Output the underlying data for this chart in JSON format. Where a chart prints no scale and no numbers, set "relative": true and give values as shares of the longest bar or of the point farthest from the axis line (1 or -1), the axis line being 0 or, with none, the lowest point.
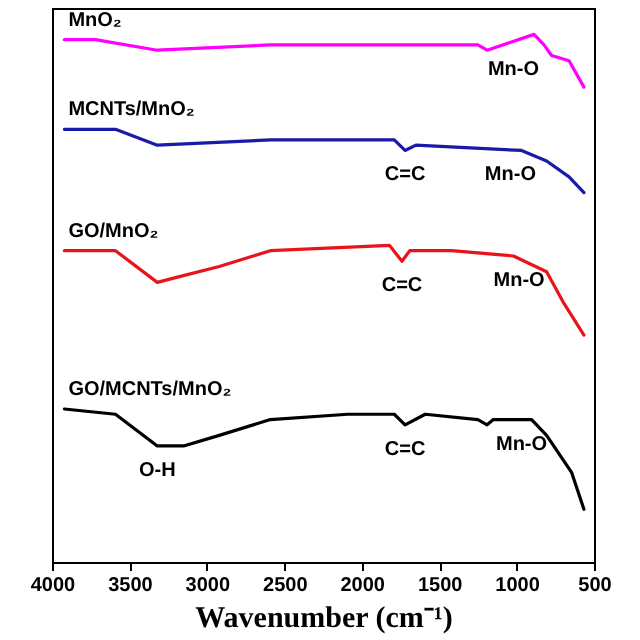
{
  "chart_data": {
    "type": "line",
    "relative": true,
    "xlabel": "Wavenumber (cm⁻¹)",
    "xlim": [
      4000,
      500
    ],
    "xticks": [
      4000,
      3500,
      3000,
      2500,
      2000,
      1500,
      1000,
      500
    ],
    "grid": false,
    "legend": false,
    "marker": "none",
    "line_style": "solid",
    "series": [
      {
        "name": "MnO₂",
        "color": "#ff00ff",
        "x": [
          3920,
          3720,
          3320,
          2590,
          1920,
          1250,
          1190,
          887,
          823,
          774,
          661,
          565
        ],
        "values": [
          0.99,
          0.99,
          0.97,
          0.98,
          0.98,
          0.98,
          0.97,
          1.0,
          0.98,
          0.96,
          0.95,
          0.9
        ]
      },
      {
        "name": "MCNTs/MnO₂",
        "color": "#1a1aa8",
        "x": [
          3920,
          3590,
          3320,
          2590,
          1790,
          1720,
          1650,
          968,
          806,
          661,
          565
        ],
        "values": [
          0.82,
          0.82,
          0.79,
          0.8,
          0.8,
          0.78,
          0.79,
          0.78,
          0.76,
          0.73,
          0.7
        ]
      },
      {
        "name": "GO/MnO₂",
        "color": "#e8141a",
        "x": [
          3920,
          3590,
          3320,
          3190,
          2920,
          2590,
          1820,
          1740,
          1690,
          1420,
          1020,
          806,
          694,
          565
        ],
        "values": [
          0.59,
          0.59,
          0.53,
          0.54,
          0.56,
          0.59,
          0.6,
          0.57,
          0.59,
          0.59,
          0.58,
          0.55,
          0.49,
          0.43
        ]
      },
      {
        "name": "GO/MCNTs/MnO₂",
        "color": "#000000",
        "x": [
          3920,
          3590,
          3320,
          3150,
          2920,
          2590,
          2090,
          1790,
          1720,
          1590,
          1250,
          1190,
          1150,
          903,
          806,
          645,
          565
        ],
        "values": [
          0.29,
          0.28,
          0.22,
          0.22,
          0.24,
          0.27,
          0.28,
          0.28,
          0.26,
          0.28,
          0.27,
          0.26,
          0.27,
          0.27,
          0.24,
          0.17,
          0.1
        ]
      }
    ],
    "annotations": [
      {
        "text": "Mn-O",
        "x": 1020,
        "y": 0.98
      },
      {
        "text": "C=C",
        "x": 1720,
        "y": 0.78
      },
      {
        "text": "Mn-O",
        "x": 1040,
        "y": 0.78
      },
      {
        "text": "C=C",
        "x": 1740,
        "y": 0.57
      },
      {
        "text": "Mn-O",
        "x": 984,
        "y": 0.58
      },
      {
        "text": "C=C",
        "x": 1720,
        "y": 0.26
      },
      {
        "text": "O-H",
        "x": 3320,
        "y": 0.22
      },
      {
        "text": "Mn-O",
        "x": 968,
        "y": 0.27
      }
    ]
  }
}
